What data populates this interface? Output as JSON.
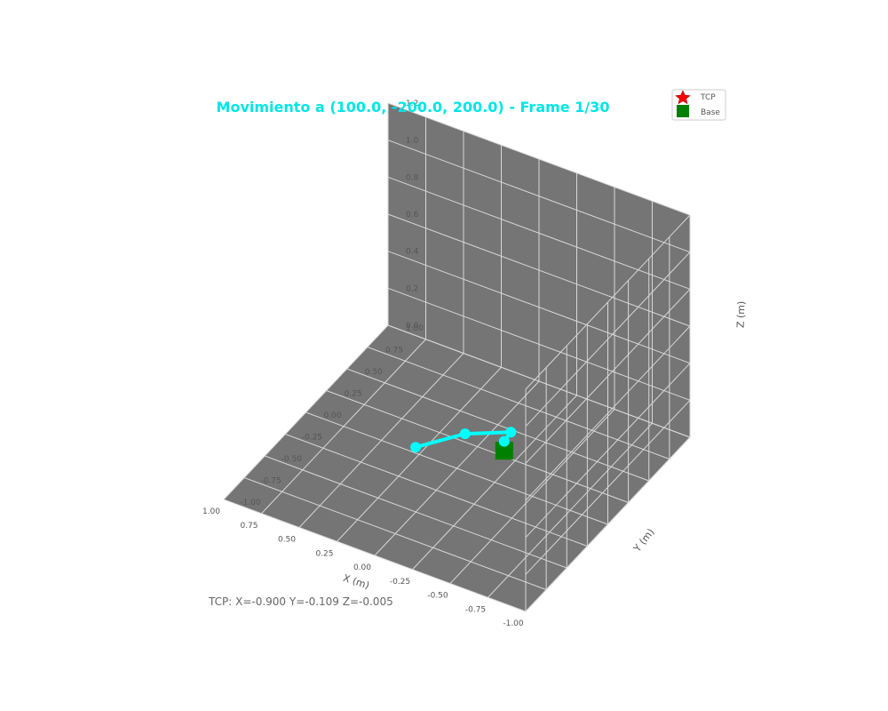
{
  "chart_data": {
    "type": "scatter",
    "title": "Movimiento a (100.0, -200.0, 200.0) - Frame 1/30",
    "xlabel": "X (m)",
    "ylabel": "Y (m)",
    "zlabel": "Z (m)",
    "xlim": [
      -1.0,
      1.0
    ],
    "ylim": [
      -1.0,
      1.0
    ],
    "zlim": [
      0.0,
      1.2
    ],
    "x_ticks": [
      "-1.00",
      "-0.75",
      "-0.50",
      "-0.25",
      "0.00",
      "0.25",
      "0.50",
      "0.75",
      "1.00"
    ],
    "y_ticks": [
      "-1.00",
      "-0.75",
      "-0.50",
      "-0.25",
      "0.00",
      "0.25",
      "0.50",
      "0.75",
      "1.00"
    ],
    "z_ticks": [
      "0.0",
      "0.2",
      "0.4",
      "0.6",
      "0.8",
      "1.0",
      "1.2"
    ],
    "grid": true,
    "legend_position": "top-right",
    "legend": [
      {
        "label": "TCP",
        "marker": "star",
        "color": "#ff0000"
      },
      {
        "label": "Base",
        "marker": "square",
        "color": "#008000"
      }
    ],
    "arm": {
      "color": "#00ffff",
      "points": [
        {
          "x": -0.15,
          "y": 0.3,
          "z": 0.05
        },
        {
          "x": -0.14,
          "y": 0.4,
          "z": 0.05
        },
        {
          "x": 0.12,
          "y": 0.32,
          "z": 0.0
        },
        {
          "x": 0.3,
          "y": 0.05,
          "z": 0.0
        }
      ]
    },
    "base": {
      "x": -0.15,
      "y": 0.3,
      "z": 0.0,
      "color": "#008000"
    },
    "status_text": "TCP: X=-0.900 Y=-0.109 Z=-0.005"
  },
  "colors": {
    "pane": "#757575",
    "grid": "#d8d8d8",
    "title": "#00e5e5"
  }
}
